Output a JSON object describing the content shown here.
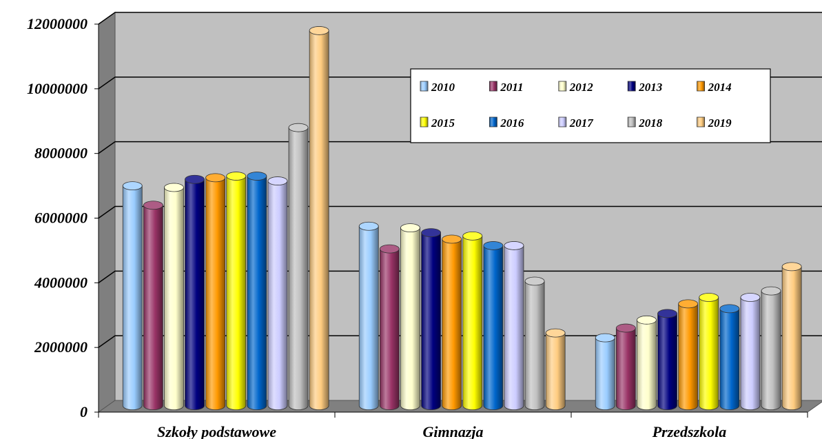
{
  "chart_data": {
    "type": "bar",
    "style": "3d-cylinder",
    "categories": [
      "Szkoły podstawowe",
      "Gimnazja",
      "Przedszkola"
    ],
    "ylim": [
      0,
      12000000
    ],
    "yticks": [
      "0",
      "2000000",
      "4000000",
      "6000000",
      "8000000",
      "10000000",
      "12000000"
    ],
    "grid": true,
    "legend_position": "top-right",
    "series": [
      {
        "name": "2010",
        "color": "#99ccff",
        "values": [
          6800000,
          5550000,
          2100000
        ]
      },
      {
        "name": "2011",
        "color": "#993366",
        "values": [
          6200000,
          4850000,
          2400000
        ]
      },
      {
        "name": "2012",
        "color": "#ffffcc",
        "values": [
          6750000,
          5500000,
          2650000
        ]
      },
      {
        "name": "2013",
        "color": "#000080",
        "values": [
          7000000,
          5350000,
          2850000
        ]
      },
      {
        "name": "2014",
        "color": "#ff9900",
        "values": [
          7050000,
          5150000,
          3150000
        ]
      },
      {
        "name": "2015",
        "color": "#ffff00",
        "values": [
          7100000,
          5250000,
          3350000
        ]
      },
      {
        "name": "2016",
        "color": "#0066cc",
        "values": [
          7100000,
          4950000,
          3000000
        ]
      },
      {
        "name": "2017",
        "color": "#ccccff",
        "values": [
          6950000,
          4950000,
          3350000
        ]
      },
      {
        "name": "2018",
        "color": "#c0c0c0",
        "values": [
          8600000,
          3850000,
          3550000
        ]
      },
      {
        "name": "2019",
        "color": "#ffcc80",
        "values": [
          11600000,
          2250000,
          4300000
        ]
      }
    ]
  }
}
